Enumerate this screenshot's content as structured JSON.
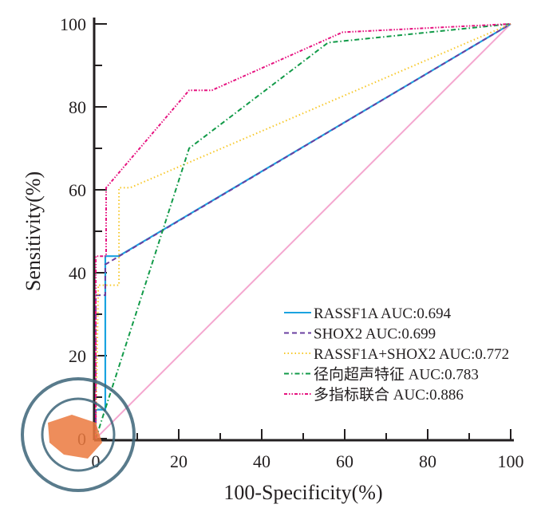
{
  "chart_data": {
    "type": "line",
    "title": "",
    "xlabel": "100-Specificity(%)",
    "ylabel": "Sensitivity(%)",
    "xlim": [
      0,
      100
    ],
    "ylim": [
      0,
      100
    ],
    "xticks": [
      "0",
      "20",
      "40",
      "60",
      "80",
      "100"
    ],
    "yticks": [
      "0",
      "20",
      "40",
      "60",
      "80",
      "100"
    ],
    "legend_position": "bottom-right",
    "series": [
      {
        "name": "RASSF1A AUC:0.694",
        "color": "#1aa3e0",
        "dash": "",
        "x": [
          0,
          0,
          2.3,
          2.3,
          5.5,
          100
        ],
        "y": [
          0,
          7,
          7,
          44,
          44,
          100
        ]
      },
      {
        "name": "SHOX2 AUC:0.699",
        "color": "#6a3fa0",
        "dash": "6,4",
        "x": [
          0,
          0,
          2.3,
          2.3,
          100
        ],
        "y": [
          0,
          34.6,
          34.6,
          42,
          100
        ]
      },
      {
        "name": "RASSF1A+SHOX2 AUC:0.772",
        "color": "#f7c82a",
        "dash": "1.5,3",
        "x": [
          0,
          0.6,
          5.6,
          5.6,
          8.3,
          100
        ],
        "y": [
          0,
          37,
          37,
          60.5,
          60.5,
          100
        ]
      },
      {
        "name": "径向超声特征 AUC:0.783",
        "color": "#119a48",
        "dash": "6,3,1.5,3",
        "x": [
          0,
          22.5,
          56,
          100
        ],
        "y": [
          0,
          70,
          95.5,
          100
        ]
      },
      {
        "name": "多指标联合 AUC:0.886",
        "color": "#e6127f",
        "dash": "4,2,1.5,2,1.5,2",
        "x": [
          0,
          0,
          2.5,
          2.5,
          22.5,
          28,
          59.5,
          100
        ],
        "y": [
          0,
          44,
          44,
          60.5,
          84,
          84,
          98,
          100
        ]
      }
    ],
    "reference_line": {
      "color": "#f4a6cf",
      "x": [
        0,
        100
      ],
      "y": [
        0,
        100
      ]
    }
  }
}
